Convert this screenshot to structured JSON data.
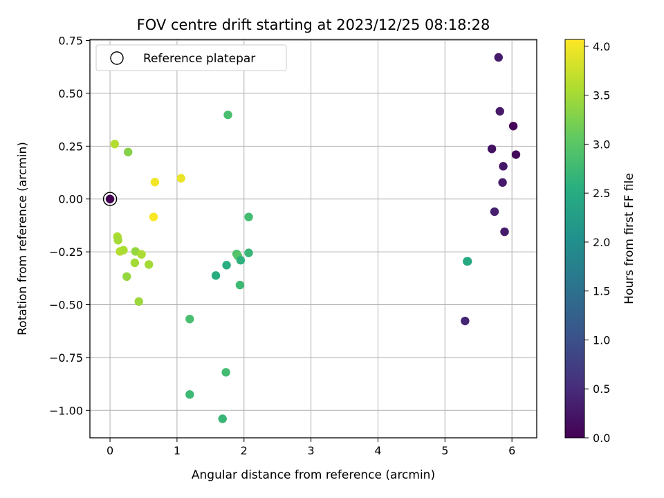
{
  "chart_data": {
    "type": "scatter",
    "title": "FOV centre drift starting at 2023/12/25 08:18:28",
    "xlabel": "Angular distance from reference (arcmin)",
    "ylabel": "Rotation from reference (arcmin)",
    "xlim": [
      -0.3,
      6.37
    ],
    "ylim": [
      -1.13,
      0.755
    ],
    "xticks": [
      0,
      1,
      2,
      3,
      4,
      5,
      6
    ],
    "yticks": [
      0.75,
      0.5,
      0.25,
      0.0,
      -0.25,
      -0.5,
      -0.75,
      -1.0
    ],
    "grid": true,
    "legend": {
      "placement": "top-left",
      "entries": [
        "Reference platepar"
      ]
    },
    "reference_point": {
      "x": 0.0,
      "y": 0.0
    },
    "colorbar": {
      "label": "Hours from first FF file",
      "range": [
        0.0,
        4.07
      ],
      "ticks": [
        0.0,
        0.5,
        1.0,
        1.5,
        2.0,
        2.5,
        3.0,
        3.5,
        4.0
      ],
      "colormap": "viridis"
    },
    "points": [
      {
        "x": 0.0,
        "y": 0.0,
        "c": 0.0
      },
      {
        "x": 5.8,
        "y": 0.67,
        "c": 0.3
      },
      {
        "x": 5.82,
        "y": 0.415,
        "c": 0.28
      },
      {
        "x": 6.02,
        "y": 0.345,
        "c": 0.05
      },
      {
        "x": 5.7,
        "y": 0.237,
        "c": 0.2
      },
      {
        "x": 6.06,
        "y": 0.21,
        "c": 0.08
      },
      {
        "x": 5.87,
        "y": 0.155,
        "c": 0.25
      },
      {
        "x": 5.86,
        "y": 0.078,
        "c": 0.28
      },
      {
        "x": 5.74,
        "y": -0.06,
        "c": 0.35
      },
      {
        "x": 5.89,
        "y": -0.155,
        "c": 0.3
      },
      {
        "x": 5.3,
        "y": -0.577,
        "c": 0.42
      },
      {
        "x": 5.33,
        "y": -0.295,
        "c": 2.4
      },
      {
        "x": 5.34,
        "y": -0.295,
        "c": 2.45
      },
      {
        "x": 1.76,
        "y": 0.398,
        "c": 2.85
      },
      {
        "x": 2.07,
        "y": -0.085,
        "c": 2.8
      },
      {
        "x": 2.07,
        "y": -0.255,
        "c": 2.7
      },
      {
        "x": 1.89,
        "y": -0.26,
        "c": 2.9
      },
      {
        "x": 1.91,
        "y": -0.27,
        "c": 2.95
      },
      {
        "x": 1.95,
        "y": -0.29,
        "c": 2.6
      },
      {
        "x": 1.74,
        "y": -0.313,
        "c": 2.55
      },
      {
        "x": 1.58,
        "y": -0.362,
        "c": 2.5
      },
      {
        "x": 1.94,
        "y": -0.407,
        "c": 2.75
      },
      {
        "x": 1.19,
        "y": -0.568,
        "c": 2.85
      },
      {
        "x": 1.73,
        "y": -0.82,
        "c": 2.8
      },
      {
        "x": 1.19,
        "y": -0.925,
        "c": 2.75
      },
      {
        "x": 1.68,
        "y": -1.04,
        "c": 2.7
      },
      {
        "x": 0.07,
        "y": 0.26,
        "c": 3.6
      },
      {
        "x": 0.27,
        "y": 0.222,
        "c": 3.3
      },
      {
        "x": 0.67,
        "y": 0.08,
        "c": 4.0
      },
      {
        "x": 1.06,
        "y": 0.098,
        "c": 3.95
      },
      {
        "x": 0.65,
        "y": -0.085,
        "c": 4.05
      },
      {
        "x": 0.11,
        "y": -0.178,
        "c": 3.55
      },
      {
        "x": 0.12,
        "y": -0.195,
        "c": 3.5
      },
      {
        "x": 0.15,
        "y": -0.248,
        "c": 3.6
      },
      {
        "x": 0.2,
        "y": -0.242,
        "c": 3.55
      },
      {
        "x": 0.38,
        "y": -0.248,
        "c": 3.4
      },
      {
        "x": 0.47,
        "y": -0.262,
        "c": 3.55
      },
      {
        "x": 0.37,
        "y": -0.302,
        "c": 3.5
      },
      {
        "x": 0.58,
        "y": -0.31,
        "c": 3.5
      },
      {
        "x": 0.25,
        "y": -0.367,
        "c": 3.4
      },
      {
        "x": 0.43,
        "y": -0.485,
        "c": 3.45
      }
    ]
  }
}
